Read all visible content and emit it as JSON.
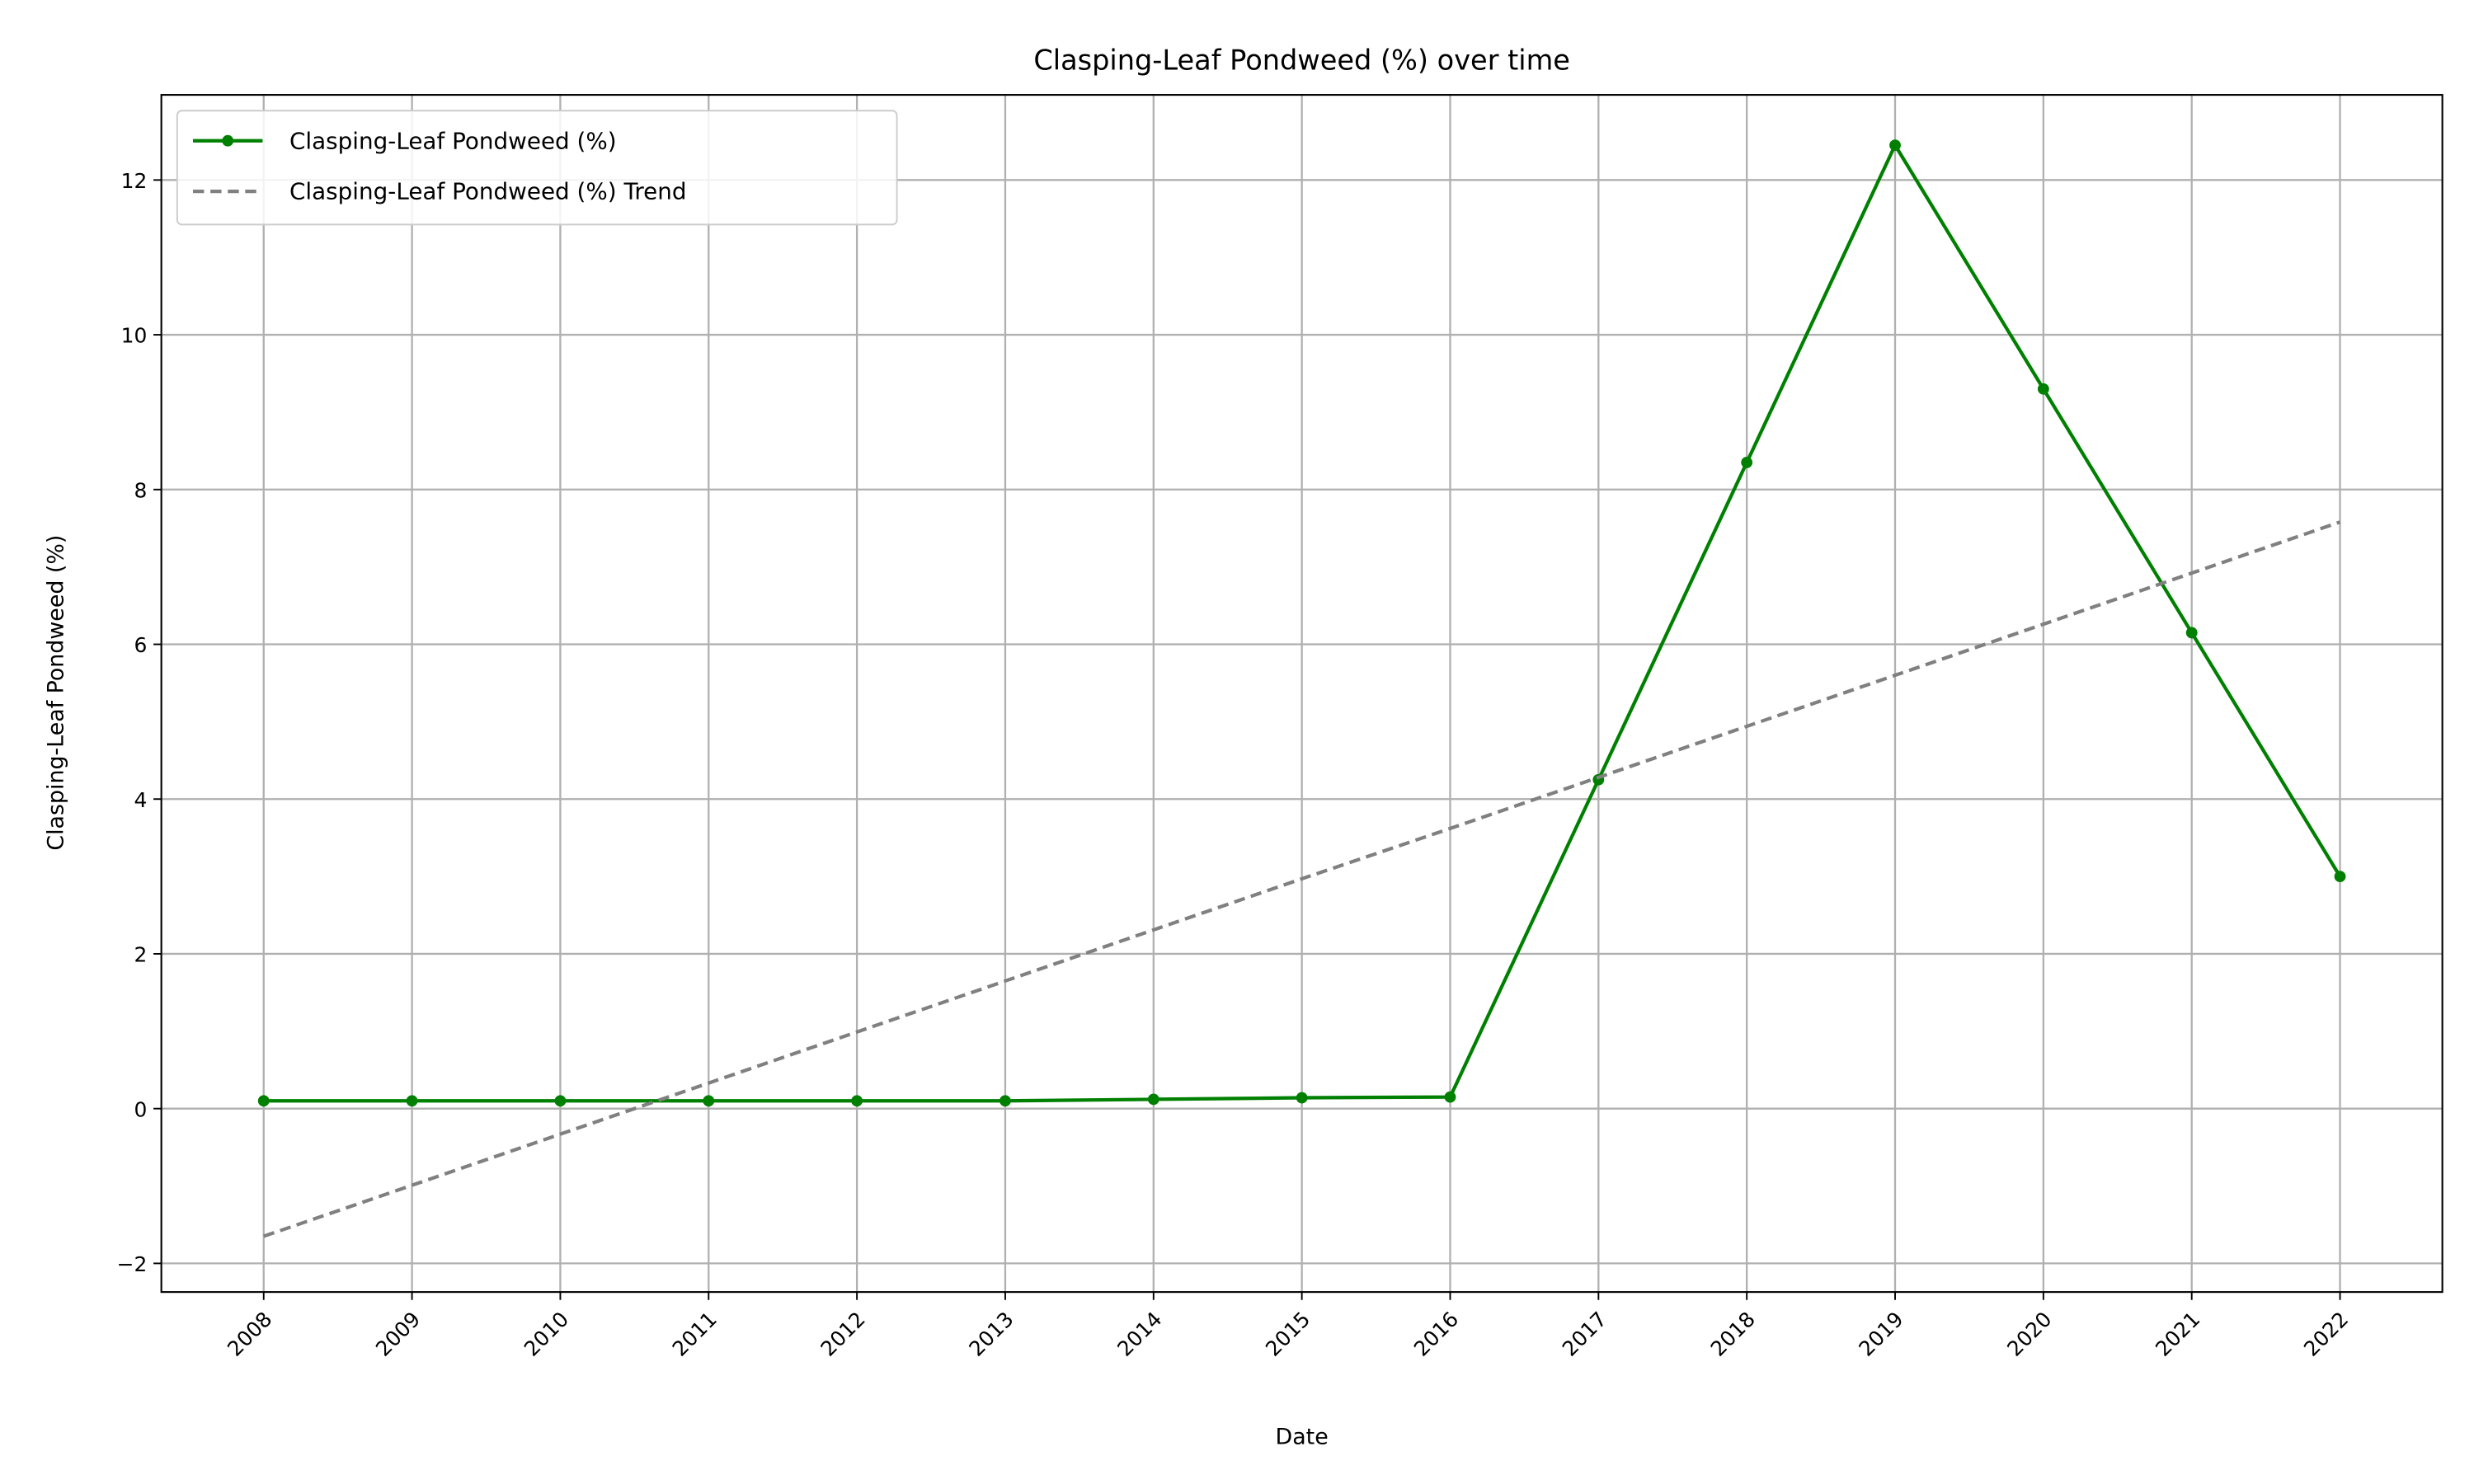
{
  "chart_data": {
    "type": "line",
    "title": "Clasping-Leaf Pondweed (%) over time",
    "xlabel": "Date",
    "ylabel": "Clasping-Leaf Pondweed (%)",
    "x": [
      2008,
      2009,
      2010,
      2011,
      2012,
      2013,
      2014,
      2015,
      2016,
      2017,
      2018,
      2019,
      2020,
      2021,
      2022
    ],
    "series": [
      {
        "name": "Clasping-Leaf Pondweed (%)",
        "color": "#008000",
        "style": "solid",
        "marker": true,
        "values": [
          0.1,
          0.1,
          0.1,
          0.1,
          0.1,
          0.1,
          0.12,
          0.14,
          0.15,
          4.25,
          8.35,
          12.45,
          9.3,
          6.15,
          3.0
        ]
      },
      {
        "name": "Clasping-Leaf Pondweed (%) Trend",
        "color": "#808080",
        "style": "dashed",
        "marker": false,
        "values": [
          -1.65,
          -0.99,
          -0.33,
          0.33,
          0.99,
          1.65,
          2.31,
          2.97,
          3.62,
          4.28,
          4.94,
          5.6,
          6.26,
          6.92,
          7.58
        ]
      }
    ],
    "xlim": [
      2007.31,
      2022.69
    ],
    "xticks": [
      2008,
      2009,
      2010,
      2011,
      2012,
      2013,
      2014,
      2015,
      2016,
      2017,
      2018,
      2019,
      2020,
      2021,
      2022
    ],
    "ylim": [
      -2.37,
      13.1
    ],
    "yticks": [
      {
        "value": -2,
        "label": "−2"
      },
      0,
      2,
      4,
      6,
      8,
      10,
      12
    ],
    "grid": true,
    "legend": "upper left"
  }
}
